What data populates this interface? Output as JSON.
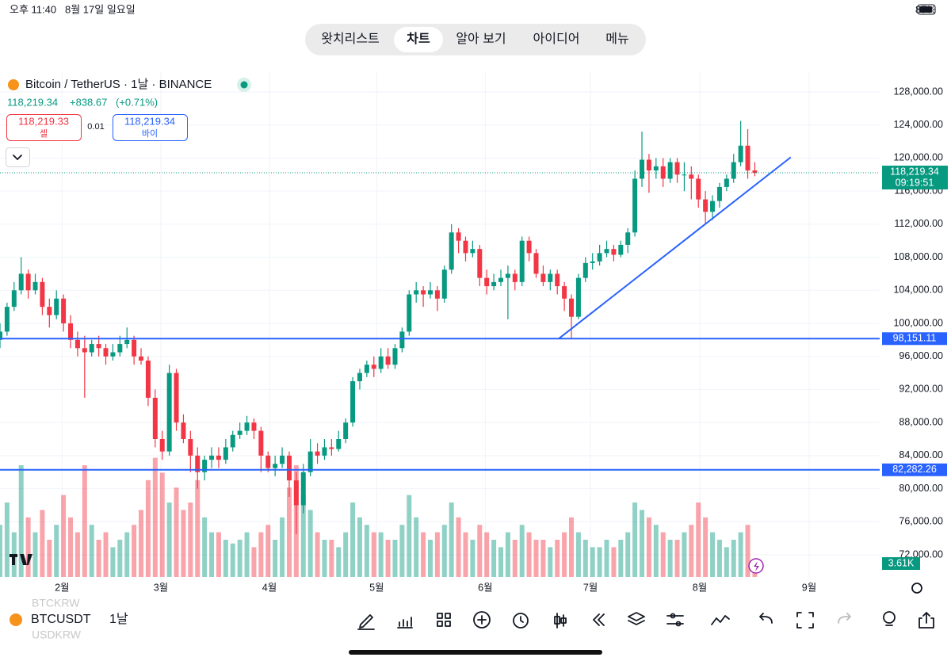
{
  "ui": {
    "status": {
      "time": "오후 11:40",
      "date": "8월 17일 일요일",
      "battery": "87%"
    },
    "tabs": [
      "왓치리스트",
      "차트",
      "알아 보기",
      "아이디어",
      "메뉴"
    ],
    "header": {
      "symbol_title": "Bitcoin / TetherUS · 1날 · BINANCE",
      "last": "118,219.34",
      "change": "+838.67",
      "change_pct": "(+0.71%)",
      "sell_price": "118,219.33",
      "sell_label": "셀",
      "spread": "0.01",
      "buy_price": "118,219.34",
      "buy_label": "바이"
    },
    "footer": {
      "symbol": "BTCUSDT",
      "interval": "1날",
      "ghost_1": "BTCKRW",
      "ghost_2": "USDKRW"
    }
  },
  "chart_data": {
    "type": "candlestick",
    "up_color": "#089981",
    "down_color": "#f23645",
    "xlim": [
      0,
      124.7
    ],
    "ylim": [
      72000,
      128000
    ],
    "xticks": [
      {
        "value": 8.8,
        "label": "2월"
      },
      {
        "value": 22.8,
        "label": "3월"
      },
      {
        "value": 38.2,
        "label": "4월"
      },
      {
        "value": 53.4,
        "label": "5월"
      },
      {
        "value": 68.8,
        "label": "6월"
      },
      {
        "value": 83.7,
        "label": "7월"
      },
      {
        "value": 99.2,
        "label": "8월"
      },
      {
        "value": 114.7,
        "label": "9월"
      }
    ],
    "yticks": [
      {
        "value": 128000,
        "label": "128,000.00"
      },
      {
        "value": 124000,
        "label": "124,000.00"
      },
      {
        "value": 120000,
        "label": "120,000.00"
      },
      {
        "value": 116000,
        "label": "116,000.00"
      },
      {
        "value": 112000,
        "label": "112,000.00"
      },
      {
        "value": 108000,
        "label": "108,000.00"
      },
      {
        "value": 104000,
        "label": "104,000.00"
      },
      {
        "value": 100000,
        "label": "100,000.00"
      },
      {
        "value": 96000,
        "label": "96,000.00"
      },
      {
        "value": 92000,
        "label": "92,000.00"
      },
      {
        "value": 88000,
        "label": "88,000.00"
      },
      {
        "value": 84000,
        "label": "84,000.00"
      },
      {
        "value": 80000,
        "label": "80,000.00"
      },
      {
        "value": 76000,
        "label": "76,000.00"
      },
      {
        "value": 72000,
        "label": "72,000.00"
      }
    ],
    "grid": true,
    "candles": [
      [
        98000,
        100000,
        97000,
        99000
      ],
      [
        99000,
        102500,
        98500,
        102000
      ],
      [
        102000,
        105000,
        101500,
        104000
      ],
      [
        104000,
        108000,
        103500,
        106000
      ],
      [
        106000,
        106500,
        103000,
        104000
      ],
      [
        104000,
        106000,
        103500,
        105000
      ],
      [
        105000,
        105500,
        101000,
        102000
      ],
      [
        102000,
        103000,
        99500,
        101000
      ],
      [
        101000,
        104000,
        100500,
        103000
      ],
      [
        103000,
        103500,
        99000,
        100000
      ],
      [
        100000,
        101000,
        97000,
        98000
      ],
      [
        98000,
        99000,
        96000,
        97000
      ],
      [
        97000,
        98500,
        91000,
        96500
      ],
      [
        96500,
        98000,
        96000,
        97500
      ],
      [
        97500,
        98500,
        96000,
        97000
      ],
      [
        97000,
        97500,
        95000,
        96000
      ],
      [
        96000,
        97500,
        95500,
        96500
      ],
      [
        96500,
        98500,
        96000,
        97500
      ],
      [
        97500,
        99500,
        97000,
        98000
      ],
      [
        98000,
        98500,
        95000,
        96000
      ],
      [
        96000,
        97000,
        95000,
        95500
      ],
      [
        95500,
        96000,
        90000,
        91000
      ],
      [
        91000,
        92000,
        85000,
        86000
      ],
      [
        86000,
        87000,
        83500,
        84500
      ],
      [
        84500,
        95000,
        84000,
        94000
      ],
      [
        94000,
        94500,
        87000,
        88000
      ],
      [
        88000,
        89000,
        85500,
        86000
      ],
      [
        86000,
        87000,
        82000,
        84000
      ],
      [
        84000,
        85000,
        80000,
        82000
      ],
      [
        82000,
        84000,
        81000,
        83500
      ],
      [
        83500,
        85000,
        82500,
        84000
      ],
      [
        84000,
        85000,
        82500,
        83500
      ],
      [
        83500,
        86000,
        83000,
        85000
      ],
      [
        85000,
        87000,
        84500,
        86500
      ],
      [
        86500,
        88000,
        86000,
        87000
      ],
      [
        87000,
        88800,
        86500,
        88000
      ],
      [
        88000,
        88500,
        86000,
        87000
      ],
      [
        87000,
        87500,
        82000,
        84000
      ],
      [
        84000,
        84500,
        82000,
        82500
      ],
      [
        82500,
        84000,
        81500,
        83000
      ],
      [
        83000,
        85000,
        82500,
        84000
      ],
      [
        84000,
        84500,
        79000,
        81000
      ],
      [
        81000,
        82000,
        74500,
        78000
      ],
      [
        78000,
        83000,
        77000,
        82000
      ],
      [
        82000,
        86000,
        81500,
        84500
      ],
      [
        84500,
        85500,
        83000,
        84000
      ],
      [
        84000,
        86000,
        83500,
        85000
      ],
      [
        85000,
        86000,
        84000,
        84800
      ],
      [
        84800,
        87000,
        84500,
        86000
      ],
      [
        86000,
        88500,
        85500,
        88000
      ],
      [
        88000,
        93500,
        87500,
        93000
      ],
      [
        93000,
        94500,
        92000,
        94000
      ],
      [
        94000,
        95500,
        93500,
        95000
      ],
      [
        95000,
        96000,
        93500,
        94500
      ],
      [
        94500,
        97000,
        94000,
        96000
      ],
      [
        96000,
        97000,
        94500,
        95000
      ],
      [
        95000,
        97500,
        94500,
        97000
      ],
      [
        97000,
        99500,
        96500,
        99000
      ],
      [
        99000,
        104000,
        98500,
        103500
      ],
      [
        103500,
        105000,
        102500,
        104000
      ],
      [
        104000,
        104500,
        102000,
        103500
      ],
      [
        103500,
        105000,
        103000,
        104000
      ],
      [
        104000,
        104500,
        101500,
        103000
      ],
      [
        103000,
        107000,
        102500,
        106500
      ],
      [
        106500,
        112000,
        106000,
        111000
      ],
      [
        111000,
        111500,
        108500,
        110000
      ],
      [
        110000,
        110500,
        107500,
        108500
      ],
      [
        108500,
        110000,
        108000,
        109000
      ],
      [
        109000,
        109500,
        104500,
        105500
      ],
      [
        105500,
        106500,
        103500,
        104500
      ],
      [
        104500,
        106000,
        104000,
        105000
      ],
      [
        105000,
        106500,
        104500,
        105500
      ],
      [
        105500,
        107000,
        100500,
        106000
      ],
      [
        106000,
        106500,
        104000,
        105000
      ],
      [
        105000,
        110500,
        104500,
        110000
      ],
      [
        110000,
        110500,
        107500,
        108500
      ],
      [
        108500,
        109000,
        105500,
        106000
      ],
      [
        106000,
        107000,
        104500,
        105000
      ],
      [
        105000,
        106500,
        104000,
        106000
      ],
      [
        106000,
        106500,
        103500,
        104500
      ],
      [
        104500,
        105000,
        101500,
        103000
      ],
      [
        103000,
        103500,
        98200,
        100800
      ],
      [
        100800,
        106000,
        100500,
        105500
      ],
      [
        105500,
        108000,
        105000,
        107300
      ],
      [
        107300,
        108500,
        106500,
        107500
      ],
      [
        107500,
        109500,
        107000,
        108500
      ],
      [
        108500,
        110000,
        108000,
        109000
      ],
      [
        109000,
        109500,
        107500,
        108300
      ],
      [
        108300,
        110000,
        108000,
        109500
      ],
      [
        109500,
        111500,
        108500,
        111000
      ],
      [
        111000,
        118500,
        110500,
        117500
      ],
      [
        117500,
        123200,
        116500,
        119800
      ],
      [
        119800,
        120500,
        115800,
        118500
      ],
      [
        118500,
        120000,
        117500,
        119000
      ],
      [
        119000,
        120000,
        116500,
        117500
      ],
      [
        117500,
        120000,
        117000,
        119500
      ],
      [
        119500,
        120000,
        117000,
        118000
      ],
      [
        118000,
        119500,
        116000,
        118000
      ],
      [
        118000,
        119000,
        115000,
        117500
      ],
      [
        117500,
        118000,
        114000,
        115000
      ],
      [
        115000,
        116000,
        112000,
        113500
      ],
      [
        113500,
        115500,
        112500,
        114800
      ],
      [
        114800,
        117000,
        114000,
        116500
      ],
      [
        116500,
        118000,
        116000,
        117500
      ],
      [
        117500,
        120500,
        117000,
        119500
      ],
      [
        119500,
        124500,
        119000,
        121500
      ],
      [
        121500,
        123500,
        117500,
        118500
      ],
      [
        118500,
        119500,
        117800,
        118200
      ]
    ],
    "volume_lim": [
      0,
      40000
    ],
    "volumes": [
      14000,
      20000,
      12000,
      30000,
      16000,
      12000,
      18000,
      10000,
      14000,
      22000,
      16000,
      12000,
      30000,
      14000,
      10000,
      12000,
      8000,
      10000,
      12000,
      14000,
      18000,
      26000,
      32000,
      28000,
      20000,
      24000,
      18000,
      20000,
      26000,
      16000,
      12000,
      12000,
      10000,
      9000,
      10000,
      12000,
      8000,
      12000,
      14000,
      10000,
      16000,
      24000,
      30000,
      22000,
      18000,
      12000,
      10000,
      10000,
      8000,
      12000,
      20000,
      16000,
      14000,
      12000,
      12000,
      10000,
      10000,
      14000,
      22000,
      16000,
      12000,
      10000,
      12000,
      14000,
      20000,
      16000,
      12000,
      10000,
      14000,
      12000,
      10000,
      8000,
      12000,
      10000,
      14000,
      12000,
      10000,
      10000,
      8000,
      10000,
      12000,
      16000,
      12000,
      10000,
      8000,
      8000,
      10000,
      8000,
      10000,
      12000,
      20000,
      18000,
      16000,
      14000,
      12000,
      10000,
      10000,
      12000,
      14000,
      20000,
      16000,
      12000,
      10000,
      8000,
      10000,
      12000,
      14000,
      3610
    ],
    "current_volume": {
      "value": 3610,
      "label": "3.61K"
    },
    "current_price": {
      "value": 118219.34,
      "label": "118,219.34",
      "countdown": "09:19:51"
    },
    "hlines": [
      {
        "value": 98151.11,
        "label": "98,151.11",
        "color": "#2962ff"
      },
      {
        "value": 82282.26,
        "label": "82,282.26",
        "color": "#2962ff"
      }
    ],
    "trendline": {
      "start": [
        79.2,
        98151.11
      ],
      "end": [
        112.1,
        120100
      ],
      "color": "#2962ff"
    }
  }
}
